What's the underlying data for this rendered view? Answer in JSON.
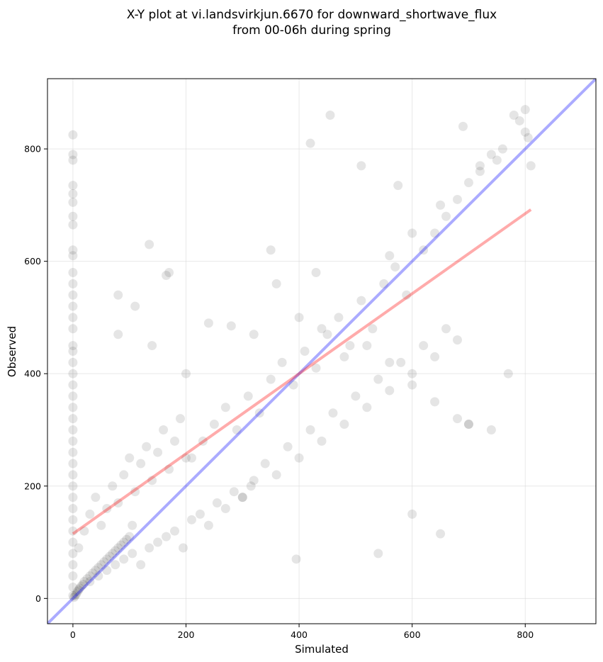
{
  "chart_data": {
    "type": "scatter",
    "title": [
      "X-Y plot at vi.landsvirkjun.6670 for downward_shortwave_flux",
      "from 00-06h during spring"
    ],
    "xlabel": "Simulated",
    "ylabel": "Observed",
    "xlim": [
      -45,
      925
    ],
    "ylim": [
      -45,
      925
    ],
    "xticks": [
      0,
      200,
      400,
      600,
      800
    ],
    "yticks": [
      0,
      200,
      400,
      600,
      800
    ],
    "grid": true,
    "legend": "none",
    "colors": {
      "points": "#000000",
      "identity_line": "#0000ff",
      "fit_line": "#ff0000",
      "grid": "#d9d9d9"
    },
    "series": [
      {
        "kind": "points",
        "x": [
          0,
          0,
          0,
          0,
          0,
          0,
          0,
          0,
          0,
          0,
          0,
          0,
          0,
          0,
          0,
          0,
          0,
          0,
          0,
          0,
          0,
          0,
          0,
          0,
          0,
          0,
          0,
          0,
          0,
          0,
          0,
          0,
          0,
          0,
          0,
          0,
          0,
          0,
          0,
          0,
          2,
          4,
          6,
          8,
          10,
          12,
          15,
          18,
          20,
          25,
          30,
          35,
          40,
          45,
          50,
          55,
          60,
          65,
          70,
          75,
          80,
          85,
          90,
          95,
          100,
          10,
          20,
          30,
          40,
          50,
          60,
          70,
          80,
          90,
          100,
          110,
          120,
          130,
          140,
          150,
          160,
          170,
          180,
          190,
          200,
          30,
          45,
          60,
          75,
          90,
          105,
          120,
          135,
          150,
          165,
          180,
          195,
          210,
          225,
          240,
          255,
          270,
          285,
          300,
          315,
          210,
          230,
          250,
          270,
          290,
          310,
          330,
          350,
          370,
          390,
          410,
          430,
          450,
          470,
          490,
          510,
          530,
          550,
          570,
          590,
          300,
          320,
          340,
          360,
          380,
          400,
          420,
          440,
          460,
          480,
          500,
          520,
          540,
          560,
          580,
          600,
          620,
          640,
          660,
          680,
          620,
          640,
          660,
          680,
          700,
          720,
          740,
          760,
          780,
          800,
          720,
          750,
          790,
          800,
          805,
          810,
          690,
          650,
          600,
          560,
          80,
          110,
          140,
          170,
          200,
          240,
          280,
          320,
          360,
          400,
          440,
          480,
          520,
          560,
          600,
          640,
          680,
          700,
          740,
          770,
          455,
          420,
          350,
          135,
          165,
          105,
          80,
          395,
          430,
          510,
          575,
          540,
          600,
          650,
          700
        ],
        "y": [
          825,
          790,
          780,
          735,
          720,
          705,
          680,
          665,
          620,
          610,
          580,
          560,
          540,
          520,
          500,
          480,
          450,
          440,
          420,
          400,
          380,
          360,
          340,
          320,
          300,
          280,
          260,
          240,
          220,
          200,
          180,
          160,
          140,
          120,
          100,
          80,
          60,
          40,
          20,
          5,
          2,
          5,
          8,
          12,
          15,
          18,
          22,
          25,
          30,
          35,
          40,
          45,
          50,
          55,
          60,
          65,
          70,
          75,
          80,
          85,
          90,
          95,
          100,
          105,
          110,
          90,
          120,
          150,
          180,
          130,
          160,
          200,
          170,
          220,
          250,
          190,
          240,
          270,
          210,
          260,
          300,
          230,
          280,
          320,
          250,
          30,
          40,
          50,
          60,
          70,
          80,
          60,
          90,
          100,
          110,
          120,
          90,
          140,
          150,
          130,
          170,
          160,
          190,
          180,
          200,
          250,
          280,
          310,
          340,
          300,
          360,
          330,
          390,
          420,
          380,
          440,
          410,
          470,
          500,
          450,
          530,
          480,
          560,
          590,
          540,
          180,
          210,
          240,
          220,
          270,
          250,
          300,
          280,
          330,
          310,
          360,
          340,
          390,
          370,
          420,
          400,
          450,
          430,
          480,
          460,
          620,
          650,
          680,
          710,
          740,
          770,
          790,
          800,
          860,
          830,
          760,
          780,
          850,
          870,
          820,
          770,
          840,
          700,
          650,
          610,
          470,
          520,
          450,
          580,
          400,
          490,
          485,
          470,
          560,
          500,
          480,
          430,
          450,
          420,
          380,
          350,
          320,
          310,
          300,
          400,
          860,
          810,
          620,
          630,
          575,
          130,
          540,
          70,
          580,
          770,
          735,
          80,
          150,
          115,
          310
        ]
      },
      {
        "kind": "line",
        "name": "",
        "x": [
          -45,
          925
        ],
        "y": [
          -45,
          925
        ]
      },
      {
        "kind": "line",
        "name": "",
        "x": [
          0,
          810
        ],
        "y": [
          115,
          692
        ]
      }
    ]
  }
}
